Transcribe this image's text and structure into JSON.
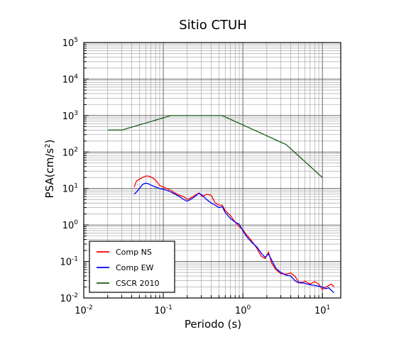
{
  "chart_data": {
    "type": "line",
    "title": "Sitio CTUH",
    "xlabel": "Periodo (s)",
    "ylabel_base": "PSA(cm/s",
    "ylabel_exp": "2",
    "ylabel_close": ")",
    "x_scale": "log",
    "y_scale": "log",
    "xlim": [
      0.01,
      17
    ],
    "ylim": [
      0.01,
      100000
    ],
    "grid": true,
    "legend_position": "bottom-left",
    "x_ticks": [
      {
        "base": "10",
        "exp": "-2",
        "value": 0.01
      },
      {
        "base": "10",
        "exp": "-1",
        "value": 0.1
      },
      {
        "base": "10",
        "exp": "0",
        "value": 1
      },
      {
        "base": "10",
        "exp": "1",
        "value": 10
      }
    ],
    "y_ticks": [
      {
        "base": "10",
        "exp": "-2",
        "value": 0.01
      },
      {
        "base": "10",
        "exp": "-1",
        "value": 0.1
      },
      {
        "base": "10",
        "exp": "0",
        "value": 1
      },
      {
        "base": "10",
        "exp": "1",
        "value": 10
      },
      {
        "base": "10",
        "exp": "2",
        "value": 100
      },
      {
        "base": "10",
        "exp": "3",
        "value": 1000
      },
      {
        "base": "10",
        "exp": "4",
        "value": 10000
      },
      {
        "base": "10",
        "exp": "5",
        "value": 100000
      }
    ],
    "series": [
      {
        "name": "Comp NS",
        "color": "#ff0000",
        "points": [
          [
            0.043,
            11
          ],
          [
            0.046,
            16
          ],
          [
            0.05,
            18
          ],
          [
            0.055,
            20
          ],
          [
            0.06,
            22
          ],
          [
            0.065,
            22
          ],
          [
            0.072,
            20
          ],
          [
            0.08,
            17
          ],
          [
            0.09,
            12
          ],
          [
            0.1,
            11
          ],
          [
            0.11,
            10
          ],
          [
            0.125,
            9
          ],
          [
            0.14,
            7.5
          ],
          [
            0.16,
            6.5
          ],
          [
            0.18,
            6
          ],
          [
            0.2,
            5
          ],
          [
            0.22,
            5.5
          ],
          [
            0.25,
            6.5
          ],
          [
            0.28,
            7.5
          ],
          [
            0.31,
            6
          ],
          [
            0.35,
            7
          ],
          [
            0.4,
            6.5
          ],
          [
            0.45,
            4
          ],
          [
            0.5,
            3.5
          ],
          [
            0.55,
            3.5
          ],
          [
            0.6,
            2.5
          ],
          [
            0.7,
            1.8
          ],
          [
            0.8,
            1.2
          ],
          [
            0.9,
            0.9
          ],
          [
            1.0,
            0.75
          ],
          [
            1.1,
            0.55
          ],
          [
            1.2,
            0.45
          ],
          [
            1.3,
            0.36
          ],
          [
            1.5,
            0.23
          ],
          [
            1.7,
            0.14
          ],
          [
            1.9,
            0.12
          ],
          [
            2.1,
            0.18
          ],
          [
            2.3,
            0.09
          ],
          [
            2.6,
            0.06
          ],
          [
            3.0,
            0.046
          ],
          [
            3.5,
            0.045
          ],
          [
            4.0,
            0.048
          ],
          [
            4.5,
            0.04
          ],
          [
            5.0,
            0.028
          ],
          [
            5.5,
            0.025
          ],
          [
            6.0,
            0.029
          ],
          [
            7.0,
            0.024
          ],
          [
            8.0,
            0.028
          ],
          [
            9.0,
            0.024
          ],
          [
            10.0,
            0.017
          ],
          [
            11.0,
            0.02
          ],
          [
            12.0,
            0.022
          ],
          [
            13.0,
            0.024
          ],
          [
            14.0,
            0.02
          ]
        ]
      },
      {
        "name": "Comp EW",
        "color": "#0000ff",
        "points": [
          [
            0.043,
            7
          ],
          [
            0.046,
            8
          ],
          [
            0.05,
            10
          ],
          [
            0.055,
            13
          ],
          [
            0.06,
            14
          ],
          [
            0.065,
            13.5
          ],
          [
            0.072,
            12
          ],
          [
            0.08,
            11
          ],
          [
            0.09,
            10
          ],
          [
            0.1,
            9.5
          ],
          [
            0.11,
            9
          ],
          [
            0.125,
            8
          ],
          [
            0.14,
            7
          ],
          [
            0.16,
            6
          ],
          [
            0.18,
            5
          ],
          [
            0.2,
            4.5
          ],
          [
            0.22,
            5
          ],
          [
            0.25,
            6
          ],
          [
            0.28,
            7.5
          ],
          [
            0.31,
            6.5
          ],
          [
            0.35,
            5
          ],
          [
            0.4,
            4
          ],
          [
            0.45,
            3.5
          ],
          [
            0.5,
            3
          ],
          [
            0.55,
            3.2
          ],
          [
            0.6,
            2.2
          ],
          [
            0.7,
            1.5
          ],
          [
            0.8,
            1.2
          ],
          [
            0.9,
            1.05
          ],
          [
            1.0,
            0.7
          ],
          [
            1.1,
            0.5
          ],
          [
            1.2,
            0.4
          ],
          [
            1.3,
            0.33
          ],
          [
            1.5,
            0.25
          ],
          [
            1.7,
            0.17
          ],
          [
            1.9,
            0.13
          ],
          [
            2.1,
            0.16
          ],
          [
            2.3,
            0.11
          ],
          [
            2.6,
            0.065
          ],
          [
            3.0,
            0.05
          ],
          [
            3.5,
            0.042
          ],
          [
            4.0,
            0.04
          ],
          [
            4.5,
            0.03
          ],
          [
            5.0,
            0.026
          ],
          [
            5.5,
            0.027
          ],
          [
            6.0,
            0.025
          ],
          [
            7.0,
            0.023
          ],
          [
            8.0,
            0.022
          ],
          [
            9.0,
            0.021
          ],
          [
            10.0,
            0.02
          ],
          [
            11.0,
            0.018
          ],
          [
            12.0,
            0.019
          ],
          [
            13.0,
            0.016
          ],
          [
            14.0,
            0.014
          ]
        ]
      },
      {
        "name": "CSCR 2010",
        "color": "#1a5c1a",
        "points": [
          [
            0.02,
            400
          ],
          [
            0.03,
            400
          ],
          [
            0.125,
            1000
          ],
          [
            0.55,
            1000
          ],
          [
            3.5,
            160
          ],
          [
            10.0,
            20
          ]
        ]
      }
    ]
  }
}
